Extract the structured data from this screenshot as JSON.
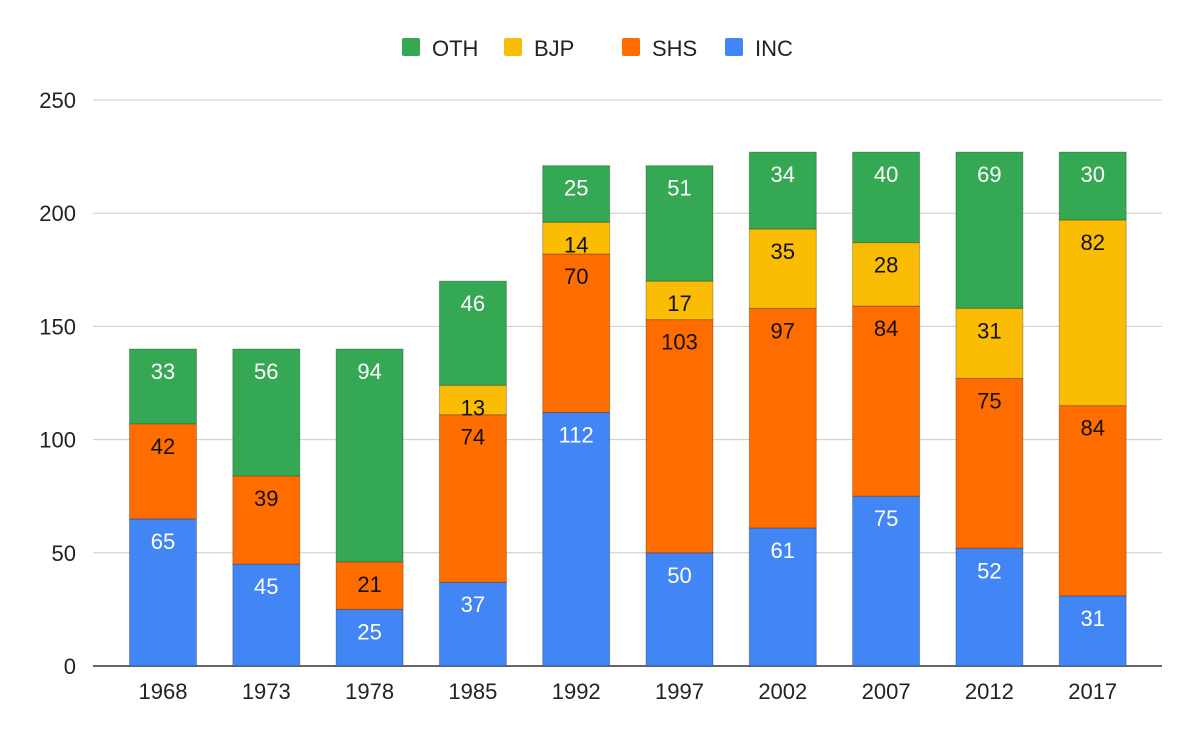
{
  "chart_data": {
    "type": "bar",
    "stacked": true,
    "title": "",
    "xlabel": "",
    "ylabel": "",
    "categories": [
      "1968",
      "1973",
      "1978",
      "1985",
      "1992",
      "1997",
      "2002",
      "2007",
      "2012",
      "2017"
    ],
    "series": [
      {
        "name": "INC",
        "color": "#4285f4",
        "values": [
          65,
          45,
          25,
          37,
          112,
          50,
          61,
          75,
          52,
          31
        ]
      },
      {
        "name": "SHS",
        "color": "#ff6d01",
        "values": [
          42,
          39,
          21,
          74,
          70,
          103,
          97,
          84,
          75,
          84
        ]
      },
      {
        "name": "BJP",
        "color": "#fbbc04",
        "values": [
          0,
          0,
          0,
          13,
          14,
          17,
          35,
          28,
          31,
          82
        ]
      },
      {
        "name": "OTH",
        "color": "#34a853",
        "values": [
          33,
          56,
          94,
          46,
          25,
          51,
          34,
          40,
          69,
          30
        ]
      }
    ],
    "legend_order": [
      "OTH",
      "BJP",
      "SHS",
      "INC"
    ],
    "legend_position": "top",
    "ylim": [
      0,
      250
    ],
    "yticks": [
      0,
      50,
      100,
      150,
      200,
      250
    ],
    "grid": true,
    "data_labels": true
  }
}
